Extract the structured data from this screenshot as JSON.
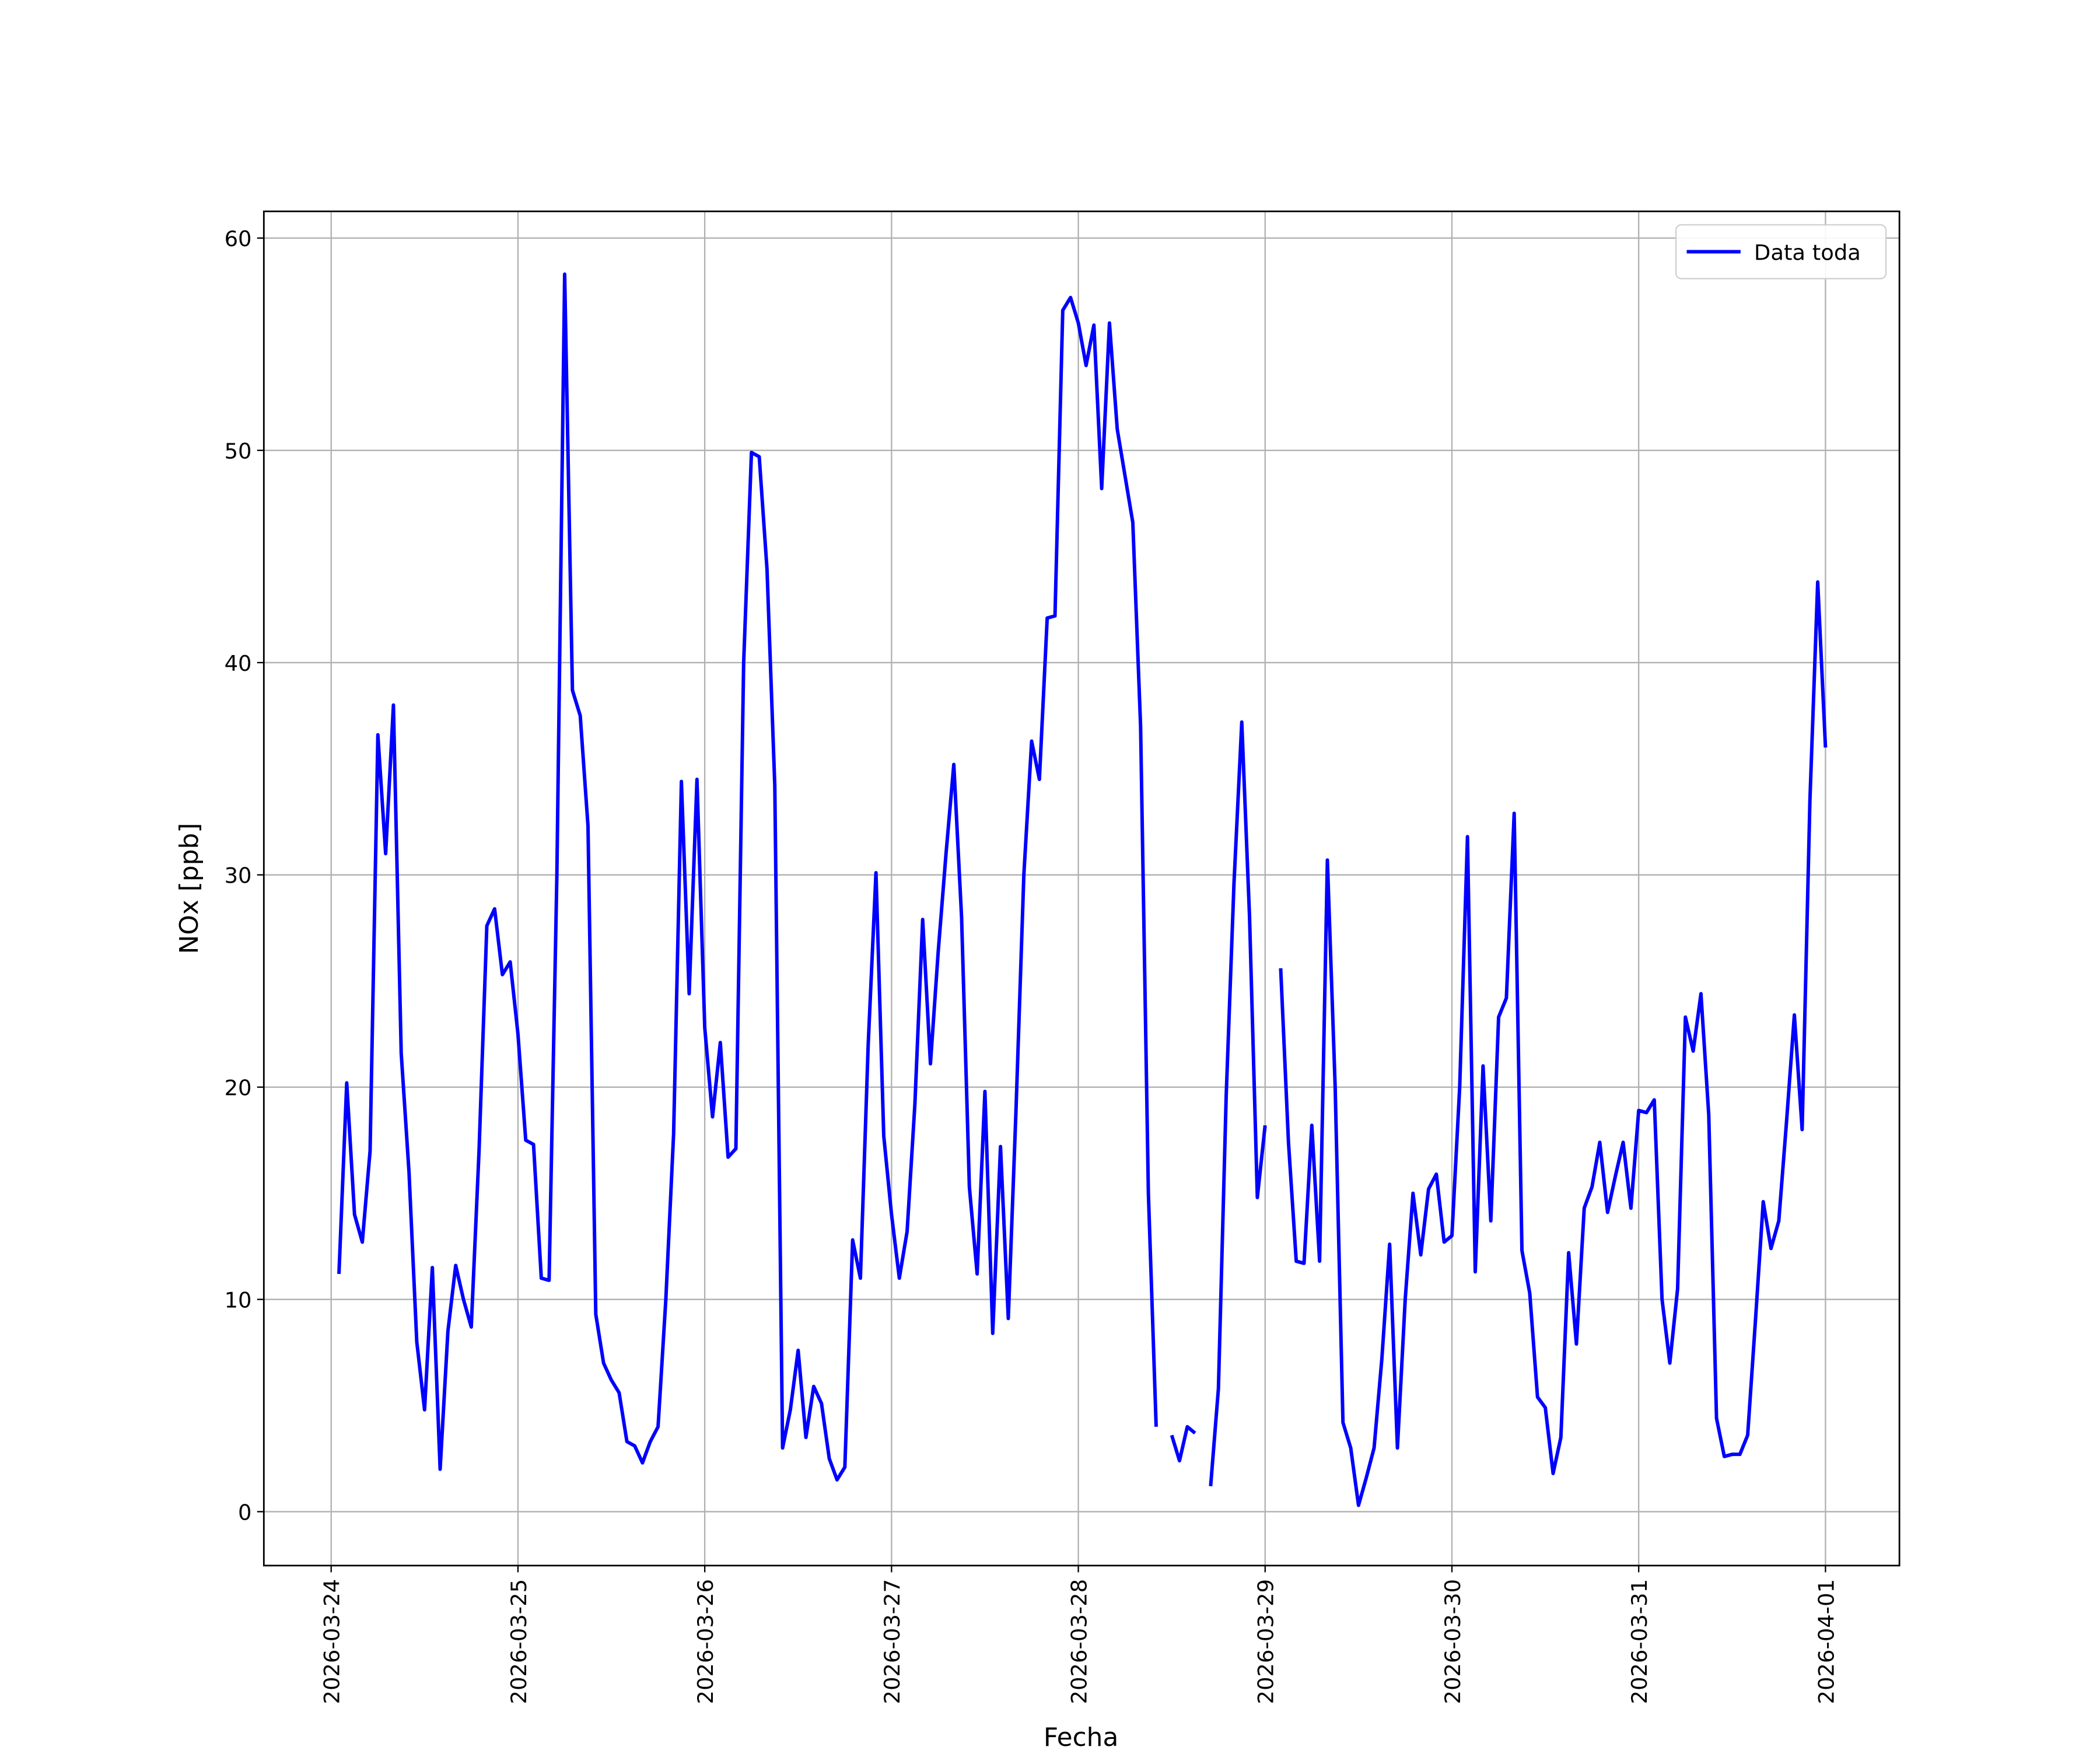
{
  "chart_data": {
    "type": "line",
    "xlabel": "Fecha",
    "ylabel": "NOx [ppb]",
    "xlim": [
      "2026-03-23T15:21",
      "2026-04-01T09:30"
    ],
    "xticks": [
      "2026-03-24",
      "2026-03-25",
      "2026-03-26",
      "2026-03-27",
      "2026-03-28",
      "2026-03-29",
      "2026-03-30",
      "2026-03-31",
      "2026-04-01"
    ],
    "ylim": [
      -2.54,
      61.26
    ],
    "yticks": [
      0,
      10,
      20,
      30,
      40,
      50,
      60
    ],
    "grid": true,
    "legend": "upper right",
    "x": [
      "2026-03-24T01:00",
      "2026-03-24T02:00",
      "2026-03-24T03:00",
      "2026-03-24T04:00",
      "2026-03-24T05:00",
      "2026-03-24T06:00",
      "2026-03-24T07:00",
      "2026-03-24T08:00",
      "2026-03-24T09:00",
      "2026-03-24T10:00",
      "2026-03-24T11:00",
      "2026-03-24T12:00",
      "2026-03-24T13:00",
      "2026-03-24T14:00",
      "2026-03-24T15:00",
      "2026-03-24T16:00",
      "2026-03-24T17:00",
      "2026-03-24T18:00",
      "2026-03-24T19:00",
      "2026-03-24T20:00",
      "2026-03-24T21:00",
      "2026-03-24T22:00",
      "2026-03-24T23:00",
      "2026-03-25T00:00",
      "2026-03-25T01:00",
      "2026-03-25T02:00",
      "2026-03-25T03:00",
      "2026-03-25T04:00",
      "2026-03-25T05:00",
      "2026-03-25T06:00",
      "2026-03-25T07:00",
      "2026-03-25T08:00",
      "2026-03-25T09:00",
      "2026-03-25T10:00",
      "2026-03-25T11:00",
      "2026-03-25T12:00",
      "2026-03-25T13:00",
      "2026-03-25T14:00",
      "2026-03-25T15:00",
      "2026-03-25T16:00",
      "2026-03-25T17:00",
      "2026-03-25T18:00",
      "2026-03-25T19:00",
      "2026-03-25T20:00",
      "2026-03-25T21:00",
      "2026-03-25T22:00",
      "2026-03-25T23:00",
      "2026-03-26T00:00",
      "2026-03-26T01:00",
      "2026-03-26T02:00",
      "2026-03-26T03:00",
      "2026-03-26T04:00",
      "2026-03-26T05:00",
      "2026-03-26T06:00",
      "2026-03-26T07:00",
      "2026-03-26T08:00",
      "2026-03-26T09:00",
      "2026-03-26T10:00",
      "2026-03-26T11:00",
      "2026-03-26T12:00",
      "2026-03-26T13:00",
      "2026-03-26T14:00",
      "2026-03-26T15:00",
      "2026-03-26T16:00",
      "2026-03-26T17:00",
      "2026-03-26T18:00",
      "2026-03-26T19:00",
      "2026-03-26T20:00",
      "2026-03-26T21:00",
      "2026-03-26T22:00",
      "2026-03-26T23:00",
      "2026-03-27T00:00",
      "2026-03-27T01:00",
      "2026-03-27T02:00",
      "2026-03-27T03:00",
      "2026-03-27T04:00",
      "2026-03-27T05:00",
      "2026-03-27T06:00",
      "2026-03-27T07:00",
      "2026-03-27T08:00",
      "2026-03-27T09:00",
      "2026-03-27T10:00",
      "2026-03-27T11:00",
      "2026-03-27T12:00",
      "2026-03-27T13:00",
      "2026-03-27T14:00",
      "2026-03-27T15:00",
      "2026-03-27T16:00",
      "2026-03-27T17:00",
      "2026-03-27T18:00",
      "2026-03-27T19:00",
      "2026-03-27T20:00",
      "2026-03-27T21:00",
      "2026-03-27T22:00",
      "2026-03-27T23:00",
      "2026-03-28T00:00",
      "2026-03-28T01:00",
      "2026-03-28T02:00",
      "2026-03-28T03:00",
      "2026-03-28T04:00",
      "2026-03-28T05:00",
      "2026-03-28T06:00",
      "2026-03-28T07:00",
      "2026-03-28T08:00",
      "2026-03-28T09:00",
      "2026-03-28T10:00",
      "2026-03-28T11:00",
      "2026-03-28T12:00",
      "2026-03-28T13:00",
      "2026-03-28T14:00",
      "2026-03-28T15:00",
      "2026-03-28T16:00",
      "2026-03-28T17:00",
      "2026-03-28T18:00",
      "2026-03-28T19:00",
      "2026-03-28T20:00",
      "2026-03-28T21:00",
      "2026-03-28T22:00",
      "2026-03-28T23:00",
      "2026-03-29T00:00",
      "2026-03-29T01:00",
      "2026-03-29T02:00",
      "2026-03-29T03:00",
      "2026-03-29T04:00",
      "2026-03-29T05:00",
      "2026-03-29T06:00",
      "2026-03-29T07:00",
      "2026-03-29T08:00",
      "2026-03-29T09:00",
      "2026-03-29T10:00",
      "2026-03-29T11:00",
      "2026-03-29T12:00",
      "2026-03-29T13:00",
      "2026-03-29T14:00",
      "2026-03-29T15:00",
      "2026-03-29T16:00",
      "2026-03-29T17:00",
      "2026-03-29T18:00",
      "2026-03-29T19:00",
      "2026-03-29T20:00",
      "2026-03-29T21:00",
      "2026-03-29T22:00",
      "2026-03-29T23:00",
      "2026-03-30T00:00",
      "2026-03-30T01:00",
      "2026-03-30T02:00",
      "2026-03-30T03:00",
      "2026-03-30T04:00",
      "2026-03-30T05:00",
      "2026-03-30T06:00",
      "2026-03-30T07:00",
      "2026-03-30T08:00",
      "2026-03-30T09:00",
      "2026-03-30T10:00",
      "2026-03-30T11:00",
      "2026-03-30T12:00",
      "2026-03-30T13:00",
      "2026-03-30T14:00",
      "2026-03-30T15:00",
      "2026-03-30T16:00",
      "2026-03-30T17:00",
      "2026-03-30T18:00",
      "2026-03-30T19:00",
      "2026-03-30T20:00",
      "2026-03-30T21:00",
      "2026-03-30T22:00",
      "2026-03-30T23:00",
      "2026-03-31T00:00",
      "2026-03-31T01:00",
      "2026-03-31T02:00",
      "2026-03-31T03:00",
      "2026-03-31T04:00",
      "2026-03-31T05:00",
      "2026-03-31T06:00",
      "2026-03-31T07:00",
      "2026-03-31T08:00",
      "2026-03-31T09:00",
      "2026-03-31T10:00",
      "2026-03-31T11:00",
      "2026-03-31T12:00",
      "2026-03-31T13:00",
      "2026-03-31T14:00",
      "2026-03-31T15:00",
      "2026-03-31T16:00",
      "2026-03-31T17:00",
      "2026-03-31T18:00",
      "2026-03-31T19:00",
      "2026-03-31T20:00",
      "2026-03-31T21:00",
      "2026-03-31T22:00",
      "2026-03-31T23:00",
      "2026-04-01T00:00"
    ],
    "series": [
      {
        "name": "Data toda",
        "color": "#0000ff",
        "values": [
          11.2,
          20.2,
          14,
          12.7,
          17,
          36.6,
          31,
          38,
          21.6,
          16,
          8,
          4.8,
          11.5,
          2,
          8.5,
          11.6,
          10,
          8.7,
          17,
          27.6,
          28.4,
          25.3,
          25.9,
          22.5,
          17.5,
          17.3,
          11,
          10.9,
          30,
          58.3,
          38.7,
          37.5,
          32.3,
          9.3,
          7,
          6.2,
          5.6,
          3.3,
          3.1,
          2.3,
          3.3,
          4,
          10,
          17.8,
          34.4,
          24.4,
          34.5,
          22.8,
          18.6,
          22.1,
          16.7,
          17.1,
          40,
          49.9,
          49.7,
          44.4,
          34.2,
          3,
          4.8,
          7.6,
          3.5,
          5.9,
          5.1,
          2.5,
          1.5,
          2.1,
          12.8,
          11,
          22,
          30.1,
          17.7,
          14,
          11,
          13.2,
          19.2,
          27.9,
          21.1,
          26.4,
          31,
          35.2,
          28,
          15.3,
          11.2,
          19.8,
          8.4,
          17.2,
          9.1,
          19,
          30,
          36.3,
          34.5,
          42.1,
          42.2,
          56.6,
          57.2,
          56,
          54,
          55.9,
          48.2,
          56,
          51,
          48.8,
          46.6,
          37,
          15,
          4,
          null,
          3.6,
          2.4,
          4,
          3.7,
          null,
          1.2,
          5.8,
          19.6,
          29.6,
          37.2,
          28,
          14.8,
          18.2,
          null,
          25.6,
          17.4,
          11.8,
          11.7,
          18.2,
          11.8,
          30.7,
          20,
          4.2,
          3,
          0.3,
          1.6,
          3,
          7.2,
          12.6,
          3,
          10,
          15,
          12.1,
          15.2,
          15.9,
          12.7,
          13,
          20,
          31.8,
          11.3,
          21,
          13.7,
          23.3,
          24.2,
          32.9,
          12.3,
          10.3,
          5.4,
          4.9,
          1.8,
          3.5,
          12.2,
          7.9,
          14.3,
          15.3,
          17.4,
          14.1,
          15.8,
          17.4,
          14.3,
          18.9,
          18.8,
          19.4,
          10,
          7,
          10.5,
          23.3,
          21.7,
          24.4,
          18.7,
          4.4,
          2.6,
          2.7,
          2.7,
          3.6,
          9,
          14.6,
          12.4,
          13.7,
          18.4,
          23.4,
          18,
          33.5,
          43.8,
          36
        ]
      }
    ]
  }
}
